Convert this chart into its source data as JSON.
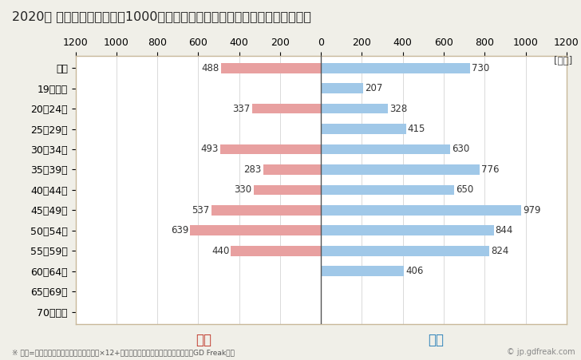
{
  "title": "2020年 民間企業（従業者数1000人以上）フルタイム労働者の男女別平均年収",
  "unit_label": "[万円]",
  "categories": [
    "全体",
    "19歳以下",
    "20～24歳",
    "25～29歳",
    "30～34歳",
    "35～39歳",
    "40～44歳",
    "45～49歳",
    "50～54歳",
    "55～59歳",
    "60～64歳",
    "65～69歳",
    "70歳以上"
  ],
  "female_values": [
    488,
    0,
    337,
    0,
    493,
    283,
    330,
    537,
    639,
    440,
    0,
    0,
    0
  ],
  "male_values": [
    730,
    207,
    328,
    415,
    630,
    776,
    650,
    979,
    844,
    824,
    406,
    0,
    0
  ],
  "female_color": "#e8a0a0",
  "male_color": "#a0c8e8",
  "female_label": "女性",
  "male_label": "男性",
  "female_label_color": "#c0392b",
  "male_label_color": "#2980b9",
  "xlim": 1200,
  "background_color": "#f0efe8",
  "plot_background": "#ffffff",
  "title_fontsize": 11.5,
  "axis_fontsize": 9,
  "label_fontsize": 8.5,
  "footnote": "※ 年収=「きまって支給する現金給与額」×12+「年間賞与その他特別給与額」としてGD Freak推計",
  "watermark": "© jp.gdfreak.com",
  "border_color": "#c8b89a"
}
